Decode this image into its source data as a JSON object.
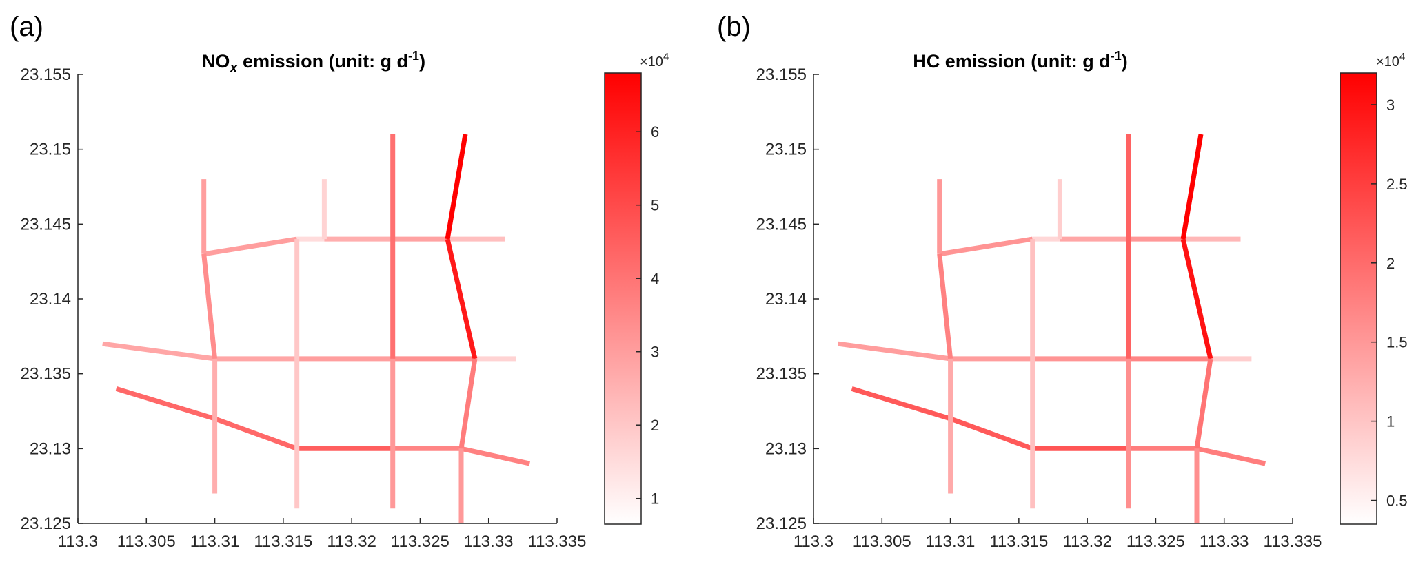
{
  "panels": [
    {
      "letter": "(a)",
      "title_species": "NO",
      "title_sub": "x",
      "title_rest": " emission (unit: g d",
      "title_sup": "-1",
      "title_end": ")"
    },
    {
      "letter": "(b)",
      "title_species": "HC ",
      "title_sub": "",
      "title_rest": " emission (unit: g d",
      "title_sup": "-1",
      "title_end": ")"
    }
  ],
  "colorbar_multiplier": {
    "base": "×10",
    "exp": "4"
  },
  "chart_data": [
    {
      "type": "line",
      "title": "NOx emission (unit: g d-1)",
      "xlabel": "",
      "ylabel": "",
      "xlim": [
        113.3,
        113.335
      ],
      "ylim": [
        23.125,
        23.155
      ],
      "xticks": [
        113.3,
        113.305,
        113.31,
        113.315,
        113.32,
        113.325,
        113.33,
        113.335
      ],
      "xtick_labels": [
        "113.3",
        "113.305",
        "113.31",
        "113.315",
        "113.32",
        "113.325",
        "113.33",
        "113.335"
      ],
      "yticks": [
        23.125,
        23.13,
        23.135,
        23.14,
        23.145,
        23.15,
        23.155
      ],
      "ytick_labels": [
        "23.125",
        "23.13",
        "23.135",
        "23.14",
        "23.145",
        "23.15",
        "23.155"
      ],
      "grid": false,
      "colorbar": {
        "min": 0.65,
        "max": 6.8,
        "ticks": [
          1,
          2,
          3,
          4,
          5,
          6
        ],
        "tick_labels": [
          "1",
          "2",
          "3",
          "4",
          "5",
          "6"
        ],
        "low_color": "#ffffff",
        "high_color": "#ff0000"
      },
      "segments": [
        {
          "x": [
            113.3028,
            113.31,
            113.316
          ],
          "y": [
            23.134,
            23.132,
            23.13
          ],
          "value": 4.3
        },
        {
          "x": [
            113.316,
            113.323
          ],
          "y": [
            23.13,
            23.13
          ],
          "value": 4.5
        },
        {
          "x": [
            113.323,
            113.328
          ],
          "y": [
            23.13,
            23.13
          ],
          "value": 3.6
        },
        {
          "x": [
            113.328,
            113.333
          ],
          "y": [
            23.13,
            23.129
          ],
          "value": 3.7
        },
        {
          "x": [
            113.3018,
            113.31
          ],
          "y": [
            23.137,
            23.136
          ],
          "value": 2.8
        },
        {
          "x": [
            113.31,
            113.316
          ],
          "y": [
            23.136,
            23.136
          ],
          "value": 2.8
        },
        {
          "x": [
            113.316,
            113.323
          ],
          "y": [
            23.136,
            23.136
          ],
          "value": 3.0
        },
        {
          "x": [
            113.323,
            113.329
          ],
          "y": [
            23.136,
            23.136
          ],
          "value": 3.3
        },
        {
          "x": [
            113.329,
            113.332
          ],
          "y": [
            23.136,
            23.136
          ],
          "value": 1.7
        },
        {
          "x": [
            113.3092,
            113.316
          ],
          "y": [
            23.143,
            23.144
          ],
          "value": 3.0
        },
        {
          "x": [
            113.316,
            113.318
          ],
          "y": [
            23.144,
            23.144
          ],
          "value": 1.5
        },
        {
          "x": [
            113.318,
            113.323
          ],
          "y": [
            23.144,
            23.144
          ],
          "value": 2.6
        },
        {
          "x": [
            113.323,
            113.327
          ],
          "y": [
            23.144,
            23.144
          ],
          "value": 2.9
        },
        {
          "x": [
            113.327,
            113.3312
          ],
          "y": [
            23.144,
            23.144
          ],
          "value": 2.2
        },
        {
          "x": [
            113.3092,
            113.3092
          ],
          "y": [
            23.148,
            23.143
          ],
          "value": 3.0
        },
        {
          "x": [
            113.3092,
            113.31
          ],
          "y": [
            23.143,
            23.136
          ],
          "value": 3.4
        },
        {
          "x": [
            113.31,
            113.31
          ],
          "y": [
            23.136,
            23.127
          ],
          "value": 2.6
        },
        {
          "x": [
            113.316,
            113.316
          ],
          "y": [
            23.144,
            23.126
          ],
          "value": 2.0
        },
        {
          "x": [
            113.318,
            113.318
          ],
          "y": [
            23.148,
            23.144
          ],
          "value": 1.7
        },
        {
          "x": [
            113.323,
            113.323
          ],
          "y": [
            23.151,
            23.136
          ],
          "value": 4.1
        },
        {
          "x": [
            113.323,
            113.323
          ],
          "y": [
            23.136,
            23.126
          ],
          "value": 3.1
        },
        {
          "x": [
            113.3283,
            113.327
          ],
          "y": [
            23.151,
            23.144
          ],
          "value": 6.8
        },
        {
          "x": [
            113.327,
            113.329
          ],
          "y": [
            23.144,
            23.136
          ],
          "value": 6.2
        },
        {
          "x": [
            113.329,
            113.328
          ],
          "y": [
            23.136,
            23.13
          ],
          "value": 3.8
        },
        {
          "x": [
            113.328,
            113.328
          ],
          "y": [
            23.13,
            23.125
          ],
          "value": 3.1
        }
      ]
    },
    {
      "type": "line",
      "title": "HC emission (unit: g d-1)",
      "xlabel": "",
      "ylabel": "",
      "xlim": [
        113.3,
        113.335
      ],
      "ylim": [
        23.125,
        23.155
      ],
      "xticks": [
        113.3,
        113.305,
        113.31,
        113.315,
        113.32,
        113.325,
        113.33,
        113.335
      ],
      "xtick_labels": [
        "113.3",
        "113.305",
        "113.31",
        "113.315",
        "113.32",
        "113.325",
        "113.33",
        "113.335"
      ],
      "yticks": [
        23.125,
        23.13,
        23.135,
        23.14,
        23.145,
        23.15,
        23.155
      ],
      "ytick_labels": [
        "23.125",
        "23.13",
        "23.135",
        "23.14",
        "23.145",
        "23.15",
        "23.155"
      ],
      "grid": false,
      "colorbar": {
        "min": 0.35,
        "max": 3.2,
        "ticks": [
          0.5,
          1,
          1.5,
          2,
          2.5,
          3
        ],
        "tick_labels": [
          "0.5",
          "1",
          "1.5",
          "2",
          "2.5",
          "3"
        ],
        "low_color": "#ffffff",
        "high_color": "#ff0000"
      },
      "segments": [
        {
          "x": [
            113.3028,
            113.31,
            113.316
          ],
          "y": [
            23.134,
            23.132,
            23.13
          ],
          "value": 2.2
        },
        {
          "x": [
            113.316,
            113.323
          ],
          "y": [
            23.13,
            23.13
          ],
          "value": 2.25
        },
        {
          "x": [
            113.323,
            113.328
          ],
          "y": [
            23.13,
            23.13
          ],
          "value": 1.8
        },
        {
          "x": [
            113.328,
            113.333
          ],
          "y": [
            23.13,
            23.129
          ],
          "value": 1.8
        },
        {
          "x": [
            113.3018,
            113.31
          ],
          "y": [
            23.137,
            23.136
          ],
          "value": 1.45
        },
        {
          "x": [
            113.31,
            113.316
          ],
          "y": [
            23.136,
            23.136
          ],
          "value": 1.45
        },
        {
          "x": [
            113.316,
            113.323
          ],
          "y": [
            23.136,
            23.136
          ],
          "value": 1.55
        },
        {
          "x": [
            113.323,
            113.329
          ],
          "y": [
            23.136,
            23.136
          ],
          "value": 1.7
        },
        {
          "x": [
            113.329,
            113.332
          ],
          "y": [
            23.136,
            23.136
          ],
          "value": 0.9
        },
        {
          "x": [
            113.3092,
            113.316
          ],
          "y": [
            23.143,
            23.144
          ],
          "value": 1.55
        },
        {
          "x": [
            113.316,
            113.318
          ],
          "y": [
            23.144,
            23.144
          ],
          "value": 0.8
        },
        {
          "x": [
            113.318,
            113.323
          ],
          "y": [
            23.144,
            23.144
          ],
          "value": 1.35
        },
        {
          "x": [
            113.323,
            113.327
          ],
          "y": [
            23.144,
            23.144
          ],
          "value": 1.5
        },
        {
          "x": [
            113.327,
            113.3312
          ],
          "y": [
            23.144,
            23.144
          ],
          "value": 1.15
        },
        {
          "x": [
            113.3092,
            113.3092
          ],
          "y": [
            23.148,
            23.143
          ],
          "value": 1.5
        },
        {
          "x": [
            113.3092,
            113.31
          ],
          "y": [
            23.143,
            23.136
          ],
          "value": 1.75
        },
        {
          "x": [
            113.31,
            113.31
          ],
          "y": [
            23.136,
            23.127
          ],
          "value": 1.3
        },
        {
          "x": [
            113.316,
            113.316
          ],
          "y": [
            23.144,
            23.126
          ],
          "value": 1.05
        },
        {
          "x": [
            113.318,
            113.318
          ],
          "y": [
            23.148,
            23.144
          ],
          "value": 0.9
        },
        {
          "x": [
            113.323,
            113.323
          ],
          "y": [
            23.151,
            23.136
          ],
          "value": 2.1
        },
        {
          "x": [
            113.323,
            113.323
          ],
          "y": [
            23.136,
            23.126
          ],
          "value": 1.6
        },
        {
          "x": [
            113.3283,
            113.327
          ],
          "y": [
            23.151,
            23.144
          ],
          "value": 3.2
        },
        {
          "x": [
            113.327,
            113.329
          ],
          "y": [
            23.144,
            23.136
          ],
          "value": 3.0
        },
        {
          "x": [
            113.329,
            113.328
          ],
          "y": [
            23.136,
            23.13
          ],
          "value": 1.9
        },
        {
          "x": [
            113.328,
            113.328
          ],
          "y": [
            23.13,
            23.125
          ],
          "value": 1.6
        }
      ]
    }
  ]
}
